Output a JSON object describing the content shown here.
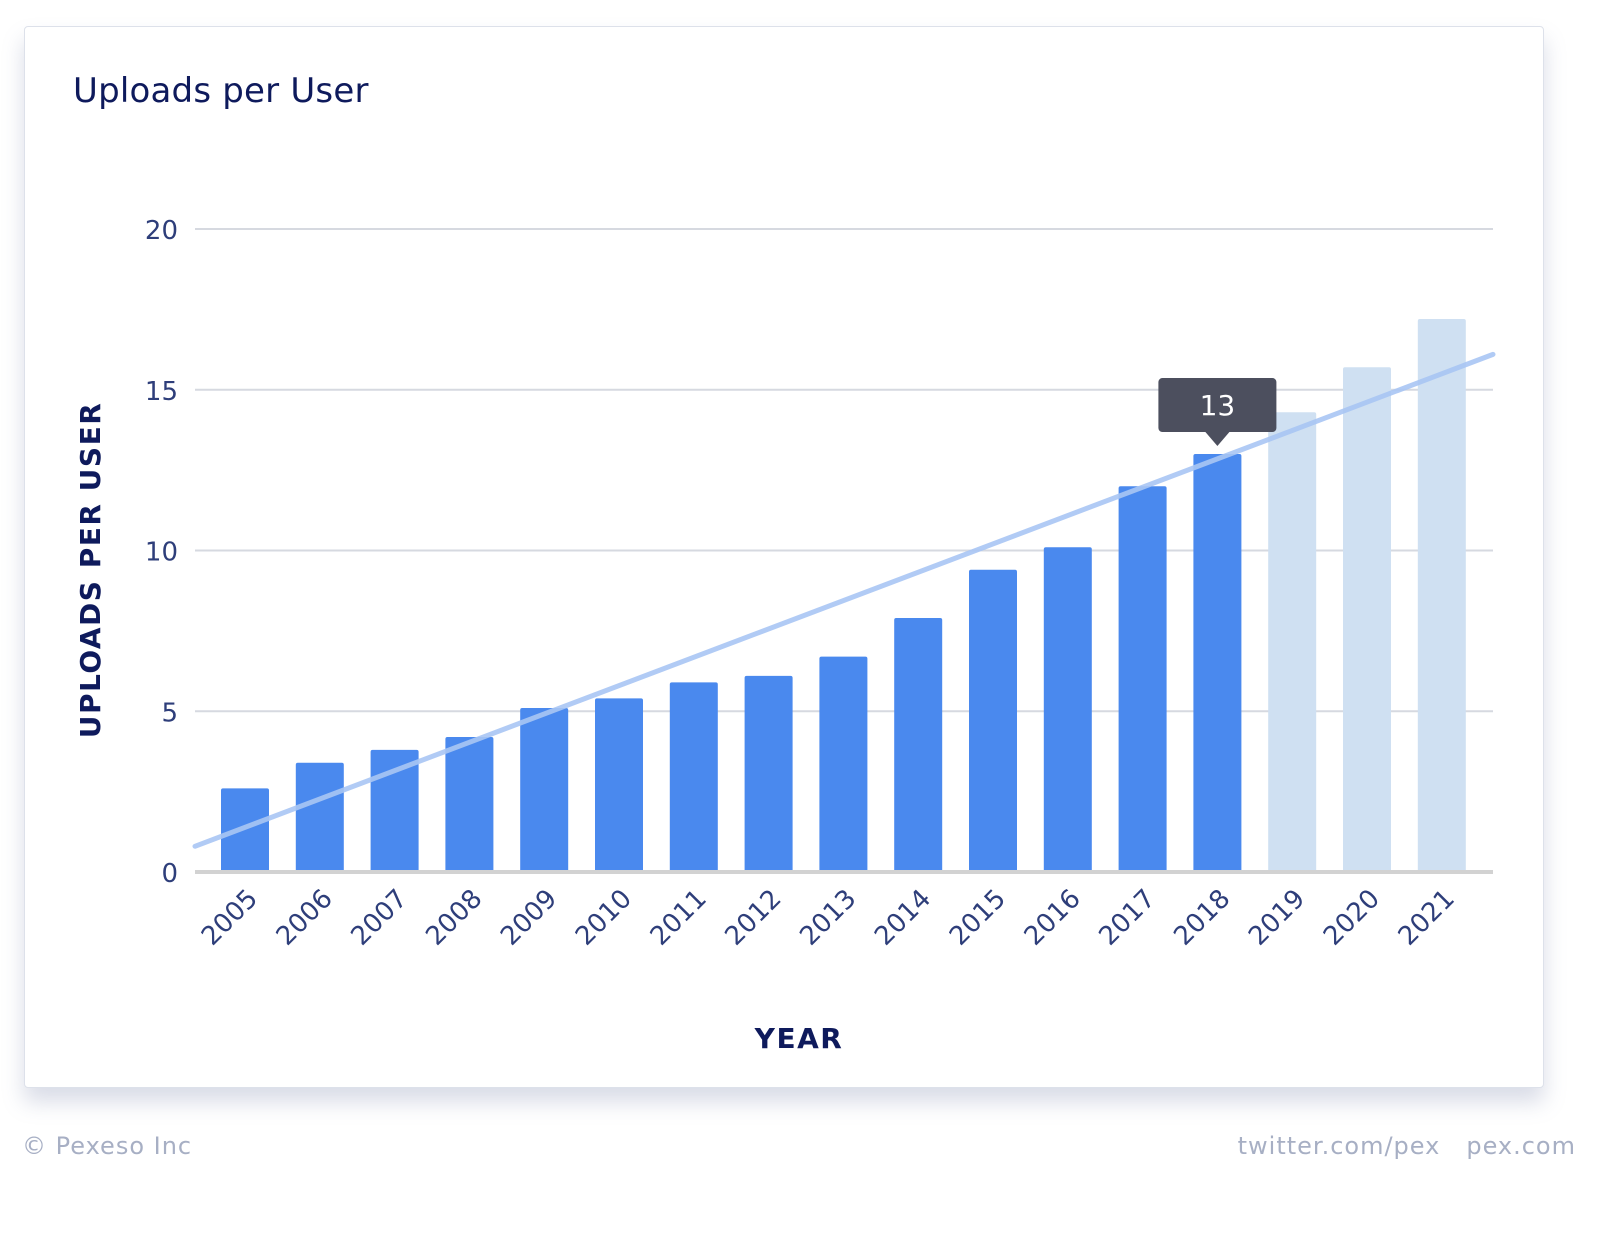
{
  "card": {
    "title": "Uploads per User"
  },
  "chart_data": {
    "type": "bar",
    "title": "Uploads per User",
    "xlabel": "YEAR",
    "ylabel": "UPLOADS PER USER",
    "ylim": [
      0,
      20
    ],
    "yticks": [
      0,
      5,
      10,
      15,
      20
    ],
    "grid": true,
    "categories": [
      "2005",
      "2006",
      "2007",
      "2008",
      "2009",
      "2010",
      "2011",
      "2012",
      "2013",
      "2014",
      "2015",
      "2016",
      "2017",
      "2018",
      "2019",
      "2020",
      "2021"
    ],
    "values": [
      2.6,
      3.4,
      3.8,
      4.2,
      5.1,
      5.4,
      5.9,
      6.1,
      6.7,
      7.9,
      9.4,
      10.1,
      12.0,
      13.0,
      14.3,
      15.7,
      17.2
    ],
    "projected_from": "2019",
    "trendline": {
      "start": 0.8,
      "end": 16.1
    },
    "tooltip": {
      "category": "2018",
      "label": "13"
    },
    "colors": {
      "bar": "#4a89ee",
      "bar_projected": "#cfe0f2",
      "trendline": "#a9c6f4",
      "grid": "#d6d9e0",
      "baseline": "#d2d2d2",
      "tick_text": "#2e3e7a",
      "axis_title": "#0e1a5c",
      "tooltip_bg": "#4c4f5e",
      "tooltip_text": "#ffffff"
    }
  },
  "footer": {
    "copyright": "© Pexeso Inc",
    "twitter": "twitter.com/pex",
    "site": "pex.com"
  }
}
